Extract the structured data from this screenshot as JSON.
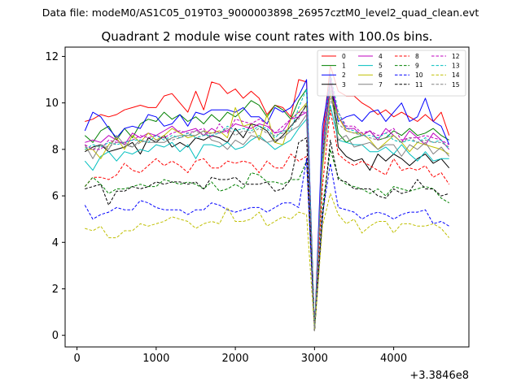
{
  "header": "Data file: modeM0/AS1C05_019T03_9000003898_26957cztM0_level2_quad_clean.evt",
  "chart_data": {
    "type": "line",
    "title": "Quadrant 2 module wise count rates with 100.0s bins.",
    "xlabel": "",
    "ylabel": "",
    "x_offset_label": "+3.3846e8",
    "xlim": [
      -150,
      4950
    ],
    "ylim": [
      -0.5,
      12.4
    ],
    "xticks": [
      0,
      1000,
      2000,
      3000,
      4000
    ],
    "yticks": [
      0,
      2,
      4,
      6,
      8,
      10,
      12
    ],
    "legend_position": "top-right",
    "x": [
      100,
      200,
      300,
      400,
      500,
      600,
      700,
      800,
      900,
      1000,
      1100,
      1200,
      1300,
      1400,
      1500,
      1600,
      1700,
      1800,
      1900,
      2000,
      2100,
      2200,
      2300,
      2400,
      2500,
      2600,
      2700,
      2800,
      2900,
      3000,
      3100,
      3200,
      3300,
      3400,
      3500,
      3600,
      3700,
      3800,
      3900,
      4000,
      4100,
      4200,
      4300,
      4400,
      4500,
      4600,
      4700
    ],
    "series": [
      {
        "name": "0",
        "color": "#ff0000",
        "dash": false,
        "values": [
          9.2,
          9.3,
          9.5,
          9.4,
          9.5,
          9.7,
          9.8,
          9.9,
          9.8,
          9.8,
          10.3,
          10.4,
          10.0,
          9.6,
          10.5,
          9.7,
          10.9,
          10.8,
          10.4,
          10.6,
          10.2,
          10.5,
          10.2,
          9.5,
          9.9,
          9.8,
          9.4,
          11.0,
          10.9,
          0.2,
          8.5,
          11.6,
          10.5,
          10.3,
          10.3,
          10.0,
          9.8,
          9.5,
          9.7,
          9.4,
          9.6,
          9.4,
          9.2,
          9.5,
          9.2,
          9.6,
          8.6
        ]
      },
      {
        "name": "1",
        "color": "#008000",
        "dash": false,
        "values": [
          8.6,
          8.3,
          8.8,
          9.0,
          8.4,
          8.9,
          8.5,
          9.1,
          9.3,
          9.2,
          9.6,
          9.3,
          9.5,
          9.2,
          9.4,
          9.1,
          9.5,
          9.2,
          9.6,
          9.4,
          9.7,
          10.1,
          9.9,
          9.4,
          9.9,
          9.7,
          9.3,
          10.1,
          10.6,
          0.2,
          8.0,
          11.0,
          8.7,
          8.3,
          8.5,
          8.6,
          8.8,
          8.4,
          8.5,
          8.8,
          8.6,
          8.9,
          8.6,
          8.7,
          8.9,
          8.6,
          8.4
        ]
      },
      {
        "name": "2",
        "color": "#0000ff",
        "dash": false,
        "values": [
          8.8,
          9.6,
          9.4,
          8.9,
          8.5,
          8.9,
          9.0,
          8.9,
          9.5,
          9.4,
          9.0,
          9.1,
          9.5,
          9.0,
          9.6,
          9.5,
          9.7,
          9.7,
          9.7,
          9.6,
          9.8,
          9.4,
          9.4,
          9.1,
          9.8,
          9.6,
          9.8,
          10.3,
          11.0,
          0.2,
          9.0,
          11.0,
          9.2,
          9.4,
          9.5,
          9.2,
          9.6,
          9.7,
          9.2,
          9.6,
          10.0,
          9.2,
          9.4,
          10.2,
          9.2,
          9.0,
          8.2
        ]
      },
      {
        "name": "3",
        "color": "#000000",
        "dash": false,
        "values": [
          7.9,
          8.1,
          8.2,
          7.9,
          8.0,
          8.1,
          8.3,
          7.8,
          8.5,
          8.3,
          8.6,
          8.1,
          8.3,
          8.1,
          8.5,
          8.4,
          8.6,
          8.5,
          8.3,
          8.9,
          8.5,
          9.1,
          9.0,
          8.8,
          8.3,
          8.6,
          9.0,
          9.4,
          9.9,
          0.2,
          7.6,
          11.2,
          8.1,
          7.7,
          7.5,
          7.6,
          7.1,
          7.8,
          7.5,
          7.8,
          7.6,
          7.3,
          7.6,
          7.8,
          7.4,
          7.6,
          7.2
        ]
      },
      {
        "name": "4",
        "color": "#bf00bf",
        "dash": false,
        "values": [
          8.3,
          8.4,
          8.3,
          8.6,
          8.4,
          8.2,
          8.7,
          8.5,
          8.7,
          8.6,
          8.8,
          9.0,
          8.7,
          8.8,
          8.9,
          8.6,
          8.9,
          8.7,
          8.8,
          9.1,
          9.0,
          8.9,
          9.1,
          9.0,
          8.7,
          8.8,
          9.3,
          9.4,
          9.6,
          0.2,
          8.2,
          11.1,
          9.4,
          8.9,
          8.9,
          8.6,
          8.8,
          8.4,
          8.9,
          8.6,
          8.3,
          8.8,
          8.5,
          8.2,
          8.7,
          8.4,
          8.0
        ]
      },
      {
        "name": "5",
        "color": "#00bfbf",
        "dash": false,
        "values": [
          7.5,
          7.1,
          7.7,
          7.9,
          7.5,
          7.9,
          7.8,
          8.0,
          7.9,
          8.2,
          8.1,
          8.3,
          7.9,
          8.2,
          7.6,
          8.2,
          8.2,
          8.1,
          8.3,
          8.0,
          8.1,
          8.4,
          8.6,
          8.3,
          8.0,
          8.2,
          8.4,
          8.9,
          9.3,
          0.2,
          7.4,
          9.9,
          8.4,
          8.3,
          8.2,
          8.2,
          7.9,
          7.9,
          8.1,
          7.8,
          8.2,
          7.8,
          7.5,
          7.9,
          7.5,
          7.6,
          7.6
        ]
      },
      {
        "name": "6",
        "color": "#bfbf00",
        "dash": false,
        "values": [
          8.0,
          8.0,
          7.6,
          8.2,
          8.5,
          8.0,
          8.6,
          8.3,
          8.7,
          8.4,
          8.6,
          8.9,
          8.7,
          8.5,
          8.6,
          8.8,
          8.7,
          8.8,
          8.5,
          9.8,
          9.0,
          9.1,
          8.4,
          9.5,
          8.3,
          8.2,
          9.3,
          9.6,
          10.0,
          0.2,
          7.1,
          10.4,
          9.4,
          8.8,
          8.7,
          8.7,
          8.4,
          8.0,
          8.3,
          8.6,
          8.3,
          7.9,
          8.3,
          8.2,
          8.1,
          8.0,
          7.8
        ]
      },
      {
        "name": "7",
        "color": "#808080",
        "dash": false,
        "values": [
          8.2,
          7.6,
          8.2,
          8.0,
          8.6,
          8.2,
          8.1,
          8.4,
          8.3,
          8.3,
          8.3,
          8.5,
          8.6,
          8.6,
          8.6,
          8.8,
          8.4,
          8.3,
          8.0,
          8.4,
          8.2,
          8.6,
          8.5,
          8.3,
          8.4,
          8.5,
          8.8,
          9.0,
          9.5,
          0.2,
          8.0,
          10.6,
          8.4,
          8.6,
          8.1,
          8.2,
          8.3,
          8.0,
          8.2,
          8.2,
          7.7,
          8.2,
          8.0,
          8.3,
          7.8,
          8.1,
          7.7
        ]
      },
      {
        "name": "8",
        "color": "#ff0000",
        "dash": true,
        "values": [
          6.4,
          6.8,
          6.8,
          6.7,
          6.9,
          7.4,
          7.1,
          7.0,
          7.3,
          7.6,
          7.3,
          7.5,
          7.3,
          7.0,
          7.5,
          7.6,
          7.2,
          7.2,
          7.5,
          7.4,
          7.5,
          7.4,
          7.0,
          7.5,
          7.2,
          7.2,
          7.8,
          7.5,
          7.7,
          0.2,
          6.4,
          9.7,
          7.8,
          7.5,
          7.3,
          7.5,
          7.3,
          7.1,
          6.9,
          7.6,
          7.1,
          7.2,
          7.1,
          7.3,
          6.8,
          7.0,
          6.5
        ]
      },
      {
        "name": "9",
        "color": "#008000",
        "dash": true,
        "values": [
          6.4,
          6.8,
          6.5,
          6.1,
          6.3,
          6.3,
          6.4,
          6.5,
          6.4,
          6.4,
          6.7,
          6.6,
          6.5,
          6.6,
          6.5,
          6.3,
          6.6,
          6.2,
          6.3,
          6.5,
          6.3,
          7.0,
          6.9,
          6.6,
          6.6,
          6.5,
          6.7,
          6.7,
          7.5,
          0.2,
          5.5,
          8.0,
          6.8,
          6.5,
          6.4,
          6.3,
          6.1,
          6.3,
          6.0,
          6.4,
          6.3,
          6.2,
          6.3,
          6.4,
          6.3,
          5.9,
          5.7
        ]
      },
      {
        "name": "10",
        "color": "#0000ff",
        "dash": true,
        "values": [
          5.6,
          5.0,
          5.2,
          5.3,
          5.5,
          5.4,
          5.4,
          5.8,
          5.7,
          5.5,
          5.4,
          5.4,
          5.4,
          5.2,
          5.4,
          5.4,
          5.7,
          5.6,
          5.4,
          5.3,
          5.4,
          5.5,
          5.5,
          5.3,
          5.5,
          5.7,
          5.7,
          5.5,
          7.6,
          0.2,
          5.2,
          7.4,
          5.5,
          5.4,
          5.3,
          5.0,
          5.2,
          5.3,
          5.2,
          5.0,
          5.2,
          5.3,
          5.3,
          5.4,
          4.8,
          4.9,
          4.7
        ]
      },
      {
        "name": "11",
        "color": "#000000",
        "dash": true,
        "values": [
          6.3,
          6.4,
          6.5,
          5.6,
          6.2,
          6.2,
          6.4,
          6.3,
          6.4,
          6.6,
          6.5,
          6.6,
          6.6,
          6.5,
          6.6,
          6.3,
          6.8,
          6.7,
          6.7,
          6.8,
          6.5,
          6.5,
          6.5,
          6.6,
          6.2,
          6.3,
          6.7,
          8.3,
          8.5,
          0.2,
          5.0,
          8.4,
          6.7,
          6.6,
          6.3,
          6.3,
          6.3,
          6.0,
          5.9,
          6.3,
          6.1,
          6.2,
          6.7,
          6.3,
          6.3,
          6.0,
          6.1
        ]
      },
      {
        "name": "12",
        "color": "#bf00bf",
        "dash": true,
        "values": [
          8.2,
          8.0,
          8.0,
          8.4,
          8.3,
          8.3,
          8.4,
          8.6,
          8.5,
          8.6,
          8.5,
          8.7,
          8.8,
          8.7,
          8.8,
          8.9,
          8.5,
          9.1,
          8.7,
          9.3,
          9.2,
          9.1,
          9.3,
          9.1,
          8.7,
          9.0,
          9.3,
          9.6,
          9.6,
          0.2,
          7.6,
          10.8,
          9.6,
          9.0,
          9.0,
          8.7,
          8.8,
          8.6,
          8.7,
          8.9,
          8.4,
          8.5,
          8.5,
          8.6,
          8.5,
          8.4,
          8.2
        ]
      },
      {
        "name": "13",
        "color": "#00bfbf",
        "dash": true,
        "values": [
          8.0,
          8.2,
          8.1,
          8.3,
          8.2,
          8.3,
          8.4,
          8.4,
          8.3,
          8.6,
          8.4,
          8.6,
          8.5,
          8.7,
          8.5,
          8.6,
          8.6,
          8.7,
          9.0,
          8.8,
          8.9,
          8.8,
          9.0,
          8.9,
          8.5,
          8.8,
          8.8,
          9.8,
          10.6,
          0.2,
          7.8,
          11.3,
          9.6,
          8.9,
          8.8,
          8.6,
          8.6,
          8.5,
          8.7,
          8.4,
          8.3,
          8.4,
          8.3,
          8.5,
          8.3,
          8.4,
          8.0
        ]
      },
      {
        "name": "14",
        "color": "#bfbf00",
        "dash": true,
        "values": [
          4.6,
          4.5,
          4.7,
          4.2,
          4.2,
          4.5,
          4.5,
          4.8,
          4.7,
          4.8,
          4.9,
          5.1,
          5.0,
          4.9,
          4.6,
          4.8,
          4.9,
          4.8,
          5.5,
          4.9,
          4.9,
          5.0,
          5.3,
          4.7,
          4.9,
          5.1,
          5.0,
          5.3,
          5.2,
          0.2,
          4.7,
          6.1,
          5.2,
          4.8,
          5.0,
          4.4,
          4.7,
          4.9,
          4.9,
          4.4,
          4.8,
          4.8,
          4.7,
          4.7,
          4.8,
          4.6,
          4.2
        ]
      },
      {
        "name": "15",
        "color": "#808080",
        "dash": true,
        "values": [
          8.1,
          8.0,
          8.2,
          8.1,
          8.3,
          8.3,
          8.1,
          8.3,
          8.4,
          8.4,
          8.5,
          8.4,
          8.5,
          8.6,
          8.8,
          8.6,
          8.7,
          8.7,
          8.9,
          8.6,
          8.8,
          8.7,
          8.9,
          8.7,
          8.6,
          8.7,
          9.0,
          9.3,
          10.0,
          0.2,
          7.4,
          10.2,
          9.1,
          8.8,
          8.7,
          8.6,
          8.5,
          8.4,
          8.5,
          8.6,
          8.3,
          8.5,
          8.3,
          8.4,
          8.3,
          8.3,
          8.1
        ]
      }
    ]
  }
}
